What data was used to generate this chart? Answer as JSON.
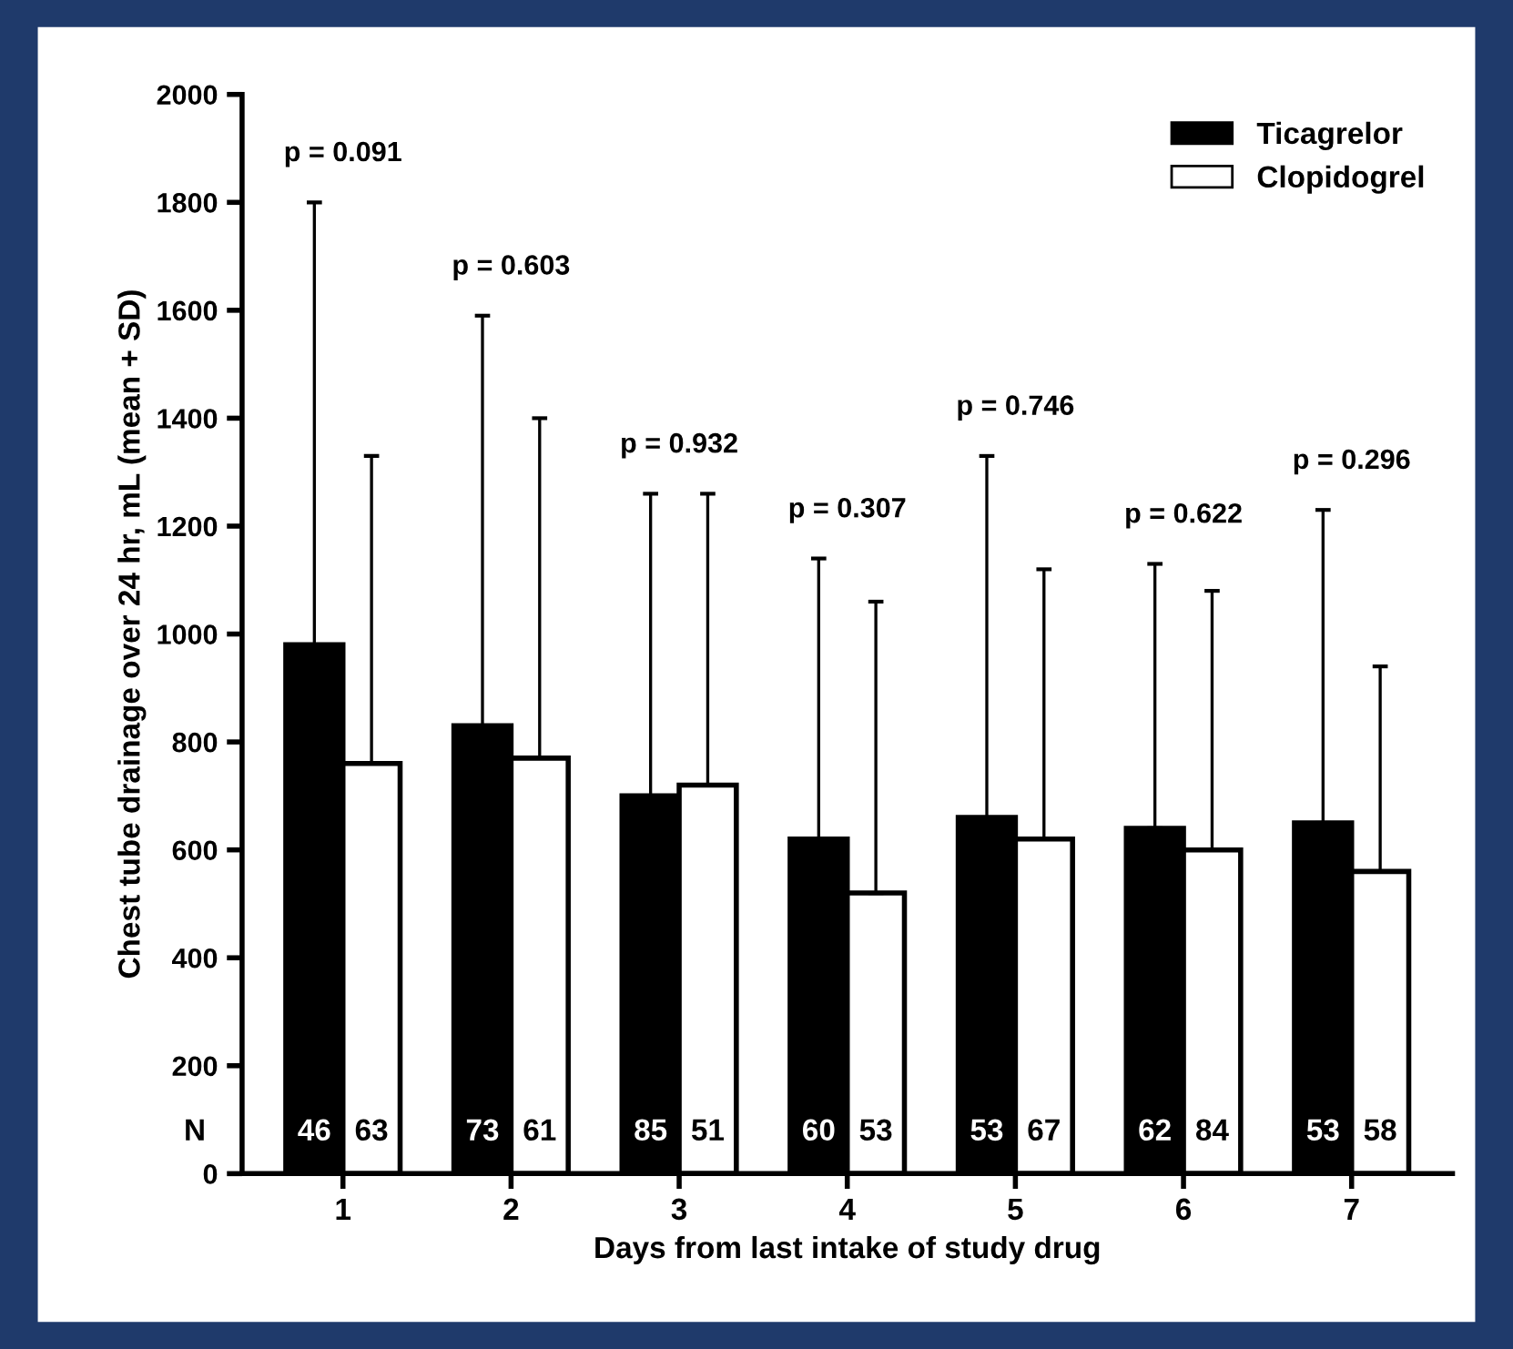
{
  "chart_data": {
    "type": "bar",
    "xlabel": "Days from last intake of study drug",
    "ylabel": "Chest tube drainage over 24 hr, mL (mean + SD)",
    "categories": [
      "1",
      "2",
      "3",
      "4",
      "5",
      "6",
      "7"
    ],
    "series": [
      {
        "name": "Ticagrelor",
        "color": "#000000",
        "values": [
          980,
          830,
          700,
          620,
          660,
          640,
          650
        ],
        "errors": [
          [
            980,
            1800
          ],
          [
            830,
            1590
          ],
          [
            700,
            1260
          ],
          [
            620,
            1140
          ],
          [
            660,
            1330
          ],
          [
            640,
            1130
          ],
          [
            650,
            1230
          ]
        ]
      },
      {
        "name": "Clopidogrel",
        "color": "#ffffff",
        "values": [
          760,
          770,
          720,
          520,
          620,
          600,
          560
        ],
        "errors": [
          [
            760,
            1330
          ],
          [
            770,
            1400
          ],
          [
            720,
            1260
          ],
          [
            520,
            1060
          ],
          [
            620,
            1120
          ],
          [
            600,
            1080
          ],
          [
            560,
            940
          ]
        ]
      }
    ],
    "ylim": [
      0,
      2000
    ],
    "yticks": [
      0,
      200,
      400,
      600,
      800,
      1000,
      1200,
      1400,
      1600,
      1800,
      2000
    ],
    "grid": false,
    "legend": "top right",
    "annotations": [
      "N",
      "p = 0.091",
      "p = 0.603",
      "p = 0.932",
      "p = 0.307",
      "p = 0.746",
      "p = 0.622",
      "p = 0.296",
      "46",
      "73",
      "85",
      "60",
      "53",
      "62",
      "53",
      "63",
      "61",
      "51",
      "53",
      "67",
      "84",
      "58"
    ]
  }
}
